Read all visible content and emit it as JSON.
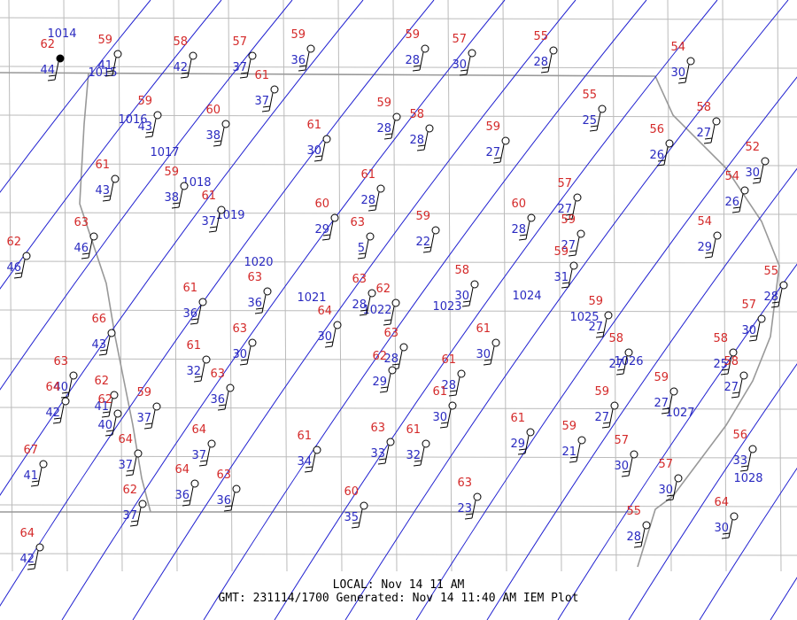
{
  "stations": [
    {
      "temperature": "62",
      "dewpoint": "44"
    },
    {
      "temperature": "59",
      "dewpoint": "41"
    },
    {
      "temperature": "58",
      "dewpoint": "42"
    },
    {
      "temperature": "57",
      "dewpoint": "37"
    },
    {
      "temperature": "59",
      "dewpoint": "36"
    },
    {
      "temperature": "59",
      "dewpoint": "28"
    },
    {
      "temperature": "57",
      "dewpoint": "30"
    },
    {
      "temperature": "55",
      "dewpoint": "28"
    },
    {
      "temperature": "54",
      "dewpoint": "30"
    },
    {
      "temperature": "61",
      "dewpoint": "37"
    },
    {
      "temperature": "59",
      "dewpoint": "43"
    },
    {
      "temperature": "60",
      "dewpoint": "38"
    },
    {
      "temperature": "59",
      "dewpoint": "28"
    },
    {
      "temperature": "58",
      "dewpoint": "28"
    },
    {
      "temperature": "61",
      "dewpoint": "30"
    },
    {
      "temperature": "59",
      "dewpoint": "27"
    },
    {
      "temperature": "55",
      "dewpoint": "25"
    },
    {
      "temperature": "58",
      "dewpoint": "27"
    },
    {
      "temperature": "56",
      "dewpoint": "26"
    },
    {
      "temperature": "52",
      "dewpoint": "30"
    },
    {
      "temperature": "61",
      "dewpoint": "43"
    },
    {
      "temperature": "59",
      "dewpoint": "38"
    },
    {
      "temperature": "61",
      "dewpoint": "37"
    },
    {
      "temperature": "61",
      "dewpoint": "28"
    },
    {
      "temperature": "60",
      "dewpoint": "29"
    },
    {
      "temperature": "63",
      "dewpoint": "5"
    },
    {
      "temperature": "59",
      "dewpoint": "22"
    },
    {
      "temperature": "60",
      "dewpoint": "28"
    },
    {
      "temperature": "57",
      "dewpoint": "27"
    },
    {
      "temperature": "54",
      "dewpoint": "26"
    },
    {
      "temperature": "59",
      "dewpoint": "27"
    },
    {
      "temperature": "59",
      "dewpoint": "31"
    },
    {
      "temperature": "54",
      "dewpoint": "29"
    },
    {
      "temperature": "63",
      "dewpoint": "46"
    },
    {
      "temperature": "62",
      "dewpoint": "46"
    },
    {
      "temperature": "61",
      "dewpoint": "36"
    },
    {
      "temperature": "63",
      "dewpoint": "36"
    },
    {
      "temperature": "63",
      "dewpoint": "28"
    },
    {
      "temperature": "62"
    },
    {
      "temperature": "64",
      "dewpoint": "30"
    },
    {
      "temperature": "58",
      "dewpoint": "30"
    },
    {
      "temperature": "55",
      "dewpoint": "28"
    },
    {
      "temperature": "57",
      "dewpoint": "30"
    },
    {
      "temperature": "66",
      "dewpoint": "43"
    },
    {
      "temperature": "63",
      "dewpoint": "30"
    },
    {
      "temperature": "63",
      "dewpoint": "28"
    },
    {
      "temperature": "62",
      "dewpoint": "29"
    },
    {
      "temperature": "61",
      "dewpoint": "28"
    },
    {
      "temperature": "61",
      "dewpoint": "30"
    },
    {
      "temperature": "59",
      "dewpoint": "27"
    },
    {
      "temperature": "58",
      "dewpoint": "27"
    },
    {
      "temperature": "58",
      "dewpoint": "25"
    },
    {
      "temperature": "58",
      "dewpoint": "27"
    },
    {
      "temperature": "63",
      "dewpoint": "40"
    },
    {
      "temperature": "62",
      "dewpoint": "41"
    },
    {
      "temperature": "64",
      "dewpoint": "42"
    },
    {
      "temperature": "62",
      "dewpoint": "40"
    },
    {
      "temperature": "59",
      "dewpoint": "37"
    },
    {
      "temperature": "61",
      "dewpoint": "32"
    },
    {
      "temperature": "63",
      "dewpoint": "36"
    },
    {
      "temperature": "61",
      "dewpoint": "30"
    },
    {
      "temperature": "59",
      "dewpoint": "27"
    },
    {
      "temperature": "59",
      "dewpoint": "27"
    },
    {
      "temperature": "56",
      "dewpoint": "33"
    },
    {
      "temperature": "64",
      "dewpoint": "37"
    },
    {
      "temperature": "61",
      "dewpoint": "34"
    },
    {
      "temperature": "63",
      "dewpoint": "33"
    },
    {
      "temperature": "61",
      "dewpoint": "32"
    },
    {
      "temperature": "61",
      "dewpoint": "29"
    },
    {
      "temperature": "59",
      "dewpoint": "21"
    },
    {
      "temperature": "57",
      "dewpoint": "30"
    },
    {
      "temperature": "57",
      "dewpoint": "30"
    },
    {
      "temperature": "64",
      "dewpoint": "37"
    },
    {
      "temperature": "67",
      "dewpoint": "41"
    },
    {
      "temperature": "64",
      "dewpoint": "36"
    },
    {
      "temperature": "63",
      "dewpoint": "36"
    },
    {
      "temperature": "62",
      "dewpoint": "37"
    },
    {
      "temperature": "63",
      "dewpoint": "23"
    },
    {
      "temperature": "60",
      "dewpoint": "35"
    },
    {
      "temperature": "55",
      "dewpoint": "28"
    },
    {
      "temperature": "64",
      "dewpoint": "30"
    },
    {
      "temperature": "64",
      "dewpoint": "42"
    }
  ],
  "isobars": [
    "1014",
    "1015",
    "1016",
    "1017",
    "1018",
    "1019",
    "1020",
    "1021",
    "1022",
    "1023",
    "1024",
    "1025",
    "1026",
    "1027",
    "1028"
  ],
  "footer": {
    "local": "LOCAL: Nov 14 11 AM",
    "gmt": "GMT: 231114/1700 Generated: Nov 14 11:40 AM IEM Plot"
  }
}
